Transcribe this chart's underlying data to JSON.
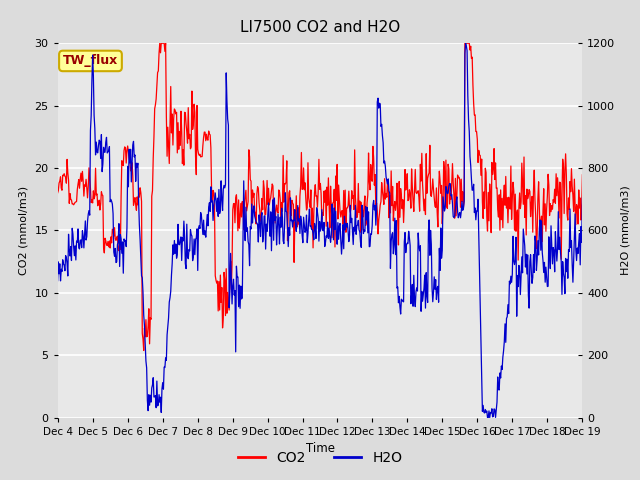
{
  "title": "LI7500 CO2 and H2O",
  "xlabel": "Time",
  "ylabel_left": "CO2 (mmol/m3)",
  "ylabel_right": "H2O (mmol/m3)",
  "legend_label": "TW_flux",
  "co2_color": "#FF0000",
  "h2o_color": "#0000CC",
  "ylim_left": [
    0,
    30
  ],
  "ylim_right": [
    0,
    1200
  ],
  "yticks_left": [
    0,
    5,
    10,
    15,
    20,
    25,
    30
  ],
  "yticks_right": [
    0,
    200,
    400,
    600,
    800,
    1000,
    1200
  ],
  "bg_color": "#DCDCDC",
  "plot_bg_color": "#E8E8E8",
  "xtick_labels": [
    "Dec 4",
    "Dec 5",
    "Dec 6",
    "Dec 7",
    "Dec 8",
    "Dec 9",
    "Dec 10",
    "Dec 11",
    "Dec 12",
    "Dec 13",
    "Dec 14",
    "Dec 15",
    "Dec 16",
    "Dec 17",
    "Dec 18",
    "Dec 19"
  ],
  "legend_box_color": "#FFFF99",
  "legend_box_edge": "#CCAA00",
  "n_days": 15,
  "seed": 123
}
